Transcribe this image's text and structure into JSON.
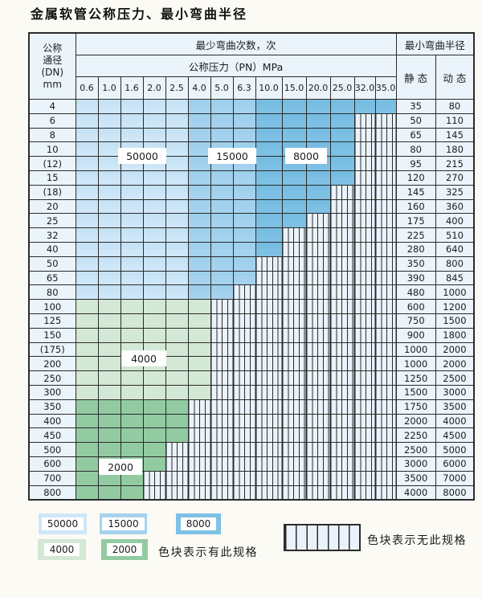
{
  "title": "金属软管公称压力、最小弯曲半径",
  "colors": {
    "blue_50000": "#cfe7f8",
    "blue_15000": "#a6d2ee",
    "blue_8000": "#7fc1e5",
    "green_4000": "#d3e8d5",
    "green_2000": "#92cba2",
    "hatch_bg": "#eaf3fb",
    "header_bg": "#ebf4fb",
    "grid_line": "#2b2b2b"
  },
  "table": {
    "header": {
      "dn_lines": [
        "公称",
        "通径",
        "(DN)",
        "mm"
      ],
      "cycles_label": "最少弯曲次数，次",
      "pressure_label": "公称压力（PN）MPa",
      "radius_label": "最小弯曲半径",
      "static_label": "静 态",
      "dynamic_label": "动 态",
      "pressures": [
        "0.6",
        "1.0",
        "1.6",
        "2.0",
        "2.5",
        "4.0",
        "5.0",
        "6.3",
        "10.0",
        "15.0",
        "20.0",
        "25.0",
        "32.0",
        "35.0"
      ]
    },
    "rows": [
      {
        "dn": "4",
        "band": "blue",
        "max_pn": "35.0",
        "static": "35",
        "dynamic": "80"
      },
      {
        "dn": "6",
        "band": "blue",
        "max_pn": "25.0",
        "static": "50",
        "dynamic": "110"
      },
      {
        "dn": "8",
        "band": "blue",
        "max_pn": "25.0",
        "static": "65",
        "dynamic": "145"
      },
      {
        "dn": "10",
        "band": "blue",
        "max_pn": "25.0",
        "static": "80",
        "dynamic": "180"
      },
      {
        "dn": "(12)",
        "band": "blue",
        "max_pn": "25.0",
        "static": "95",
        "dynamic": "215"
      },
      {
        "dn": "15",
        "band": "blue",
        "max_pn": "25.0",
        "static": "120",
        "dynamic": "270"
      },
      {
        "dn": "(18)",
        "band": "blue",
        "max_pn": "20.0",
        "static": "145",
        "dynamic": "325"
      },
      {
        "dn": "20",
        "band": "blue",
        "max_pn": "20.0",
        "static": "160",
        "dynamic": "360"
      },
      {
        "dn": "25",
        "band": "blue",
        "max_pn": "15.0",
        "static": "175",
        "dynamic": "400"
      },
      {
        "dn": "32",
        "band": "blue",
        "max_pn": "10.0",
        "static": "225",
        "dynamic": "510"
      },
      {
        "dn": "40",
        "band": "blue",
        "max_pn": "10.0",
        "static": "280",
        "dynamic": "640"
      },
      {
        "dn": "50",
        "band": "blue",
        "max_pn": "6.3",
        "static": "350",
        "dynamic": "800"
      },
      {
        "dn": "65",
        "band": "blue",
        "max_pn": "6.3",
        "static": "390",
        "dynamic": "845"
      },
      {
        "dn": "80",
        "band": "blue",
        "max_pn": "5.0",
        "static": "480",
        "dynamic": "1000"
      },
      {
        "dn": "100",
        "band": "green_4000",
        "max_pn": "4.0",
        "static": "600",
        "dynamic": "1200"
      },
      {
        "dn": "125",
        "band": "green_4000",
        "max_pn": "4.0",
        "static": "750",
        "dynamic": "1500"
      },
      {
        "dn": "150",
        "band": "green_4000",
        "max_pn": "4.0",
        "static": "900",
        "dynamic": "1800"
      },
      {
        "dn": "(175)",
        "band": "green_4000",
        "max_pn": "4.0",
        "static": "1000",
        "dynamic": "2000"
      },
      {
        "dn": "200",
        "band": "green_4000",
        "max_pn": "4.0",
        "static": "1000",
        "dynamic": "2000"
      },
      {
        "dn": "250",
        "band": "green_4000",
        "max_pn": "4.0",
        "static": "1250",
        "dynamic": "2500"
      },
      {
        "dn": "300",
        "band": "green_4000",
        "max_pn": "4.0",
        "static": "1500",
        "dynamic": "3000"
      },
      {
        "dn": "350",
        "band": "green_2000",
        "max_pn": "2.5",
        "static": "1750",
        "dynamic": "3500"
      },
      {
        "dn": "400",
        "band": "green_2000",
        "max_pn": "2.5",
        "static": "2000",
        "dynamic": "4000"
      },
      {
        "dn": "450",
        "band": "green_2000",
        "max_pn": "2.5",
        "static": "2250",
        "dynamic": "4500"
      },
      {
        "dn": "500",
        "band": "green_2000",
        "max_pn": "2.0",
        "static": "2500",
        "dynamic": "5000"
      },
      {
        "dn": "600",
        "band": "green_2000",
        "max_pn": "2.0",
        "static": "3000",
        "dynamic": "6000"
      },
      {
        "dn": "700",
        "band": "green_2000",
        "max_pn": "1.6",
        "static": "3500",
        "dynamic": "7000"
      },
      {
        "dn": "800",
        "band": "green_2000",
        "max_pn": "1.6",
        "static": "4000",
        "dynamic": "8000"
      }
    ]
  },
  "overlays": [
    {
      "text": "50000"
    },
    {
      "text": "15000"
    },
    {
      "text": "8000"
    },
    {
      "text": "4000"
    },
    {
      "text": "2000"
    }
  ],
  "legend": {
    "blocks": [
      {
        "label": "50000",
        "color_key": "blue_50000"
      },
      {
        "label": "15000",
        "color_key": "blue_15000"
      },
      {
        "label": "8000",
        "color_key": "blue_8000"
      },
      {
        "label": "4000",
        "color_key": "green_4000"
      },
      {
        "label": "2000",
        "color_key": "green_2000"
      }
    ],
    "has_spec_note": "色块表示有此规格",
    "no_spec_note": "色块表示无此规格"
  }
}
